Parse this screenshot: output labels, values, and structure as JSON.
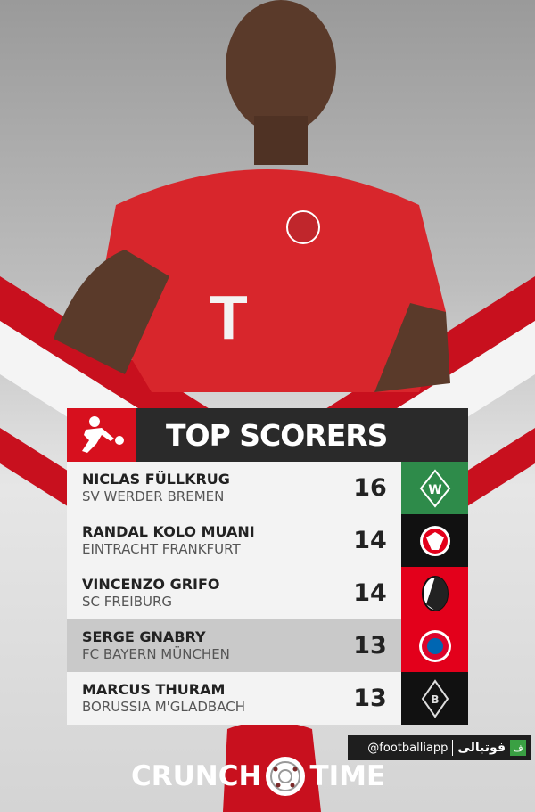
{
  "header": {
    "title": "TOP SCORERS",
    "league_logo": "bundesliga-logo"
  },
  "scorers": [
    {
      "name": "NICLAS FÜLLKRUG",
      "club": "SV WERDER BREMEN",
      "goals": "16",
      "badge_color": "#2e8b4a",
      "badge": "werder-bremen-crest"
    },
    {
      "name": "RANDAL KOLO MUANI",
      "club": "EINTRACHT FRANKFURT",
      "goals": "14",
      "badge_color": "#111111",
      "badge": "eintracht-frankfurt-crest"
    },
    {
      "name": "VINCENZO GRIFO",
      "club": "SC FREIBURG",
      "goals": "14",
      "badge_color": "#e3001b",
      "badge": "sc-freiburg-crest"
    },
    {
      "name": "SERGE GNABRY",
      "club": "FC BAYERN MÜNCHEN",
      "goals": "13",
      "badge_color": "#e3001b",
      "badge": "fc-bayern-crest"
    },
    {
      "name": "MARCUS THURAM",
      "club": "BORUSSIA M'GLADBACH",
      "goals": "13",
      "badge_color": "#111111",
      "badge": "gladbach-crest"
    }
  ],
  "watermark": {
    "handle": "@footballiapp",
    "brand": "فوتبالی",
    "logo": "ف"
  },
  "footer": {
    "left": "CRUNCH",
    "right": "TIME"
  },
  "colors": {
    "accent": "#d7101e",
    "dark": "#2a2a2a"
  }
}
